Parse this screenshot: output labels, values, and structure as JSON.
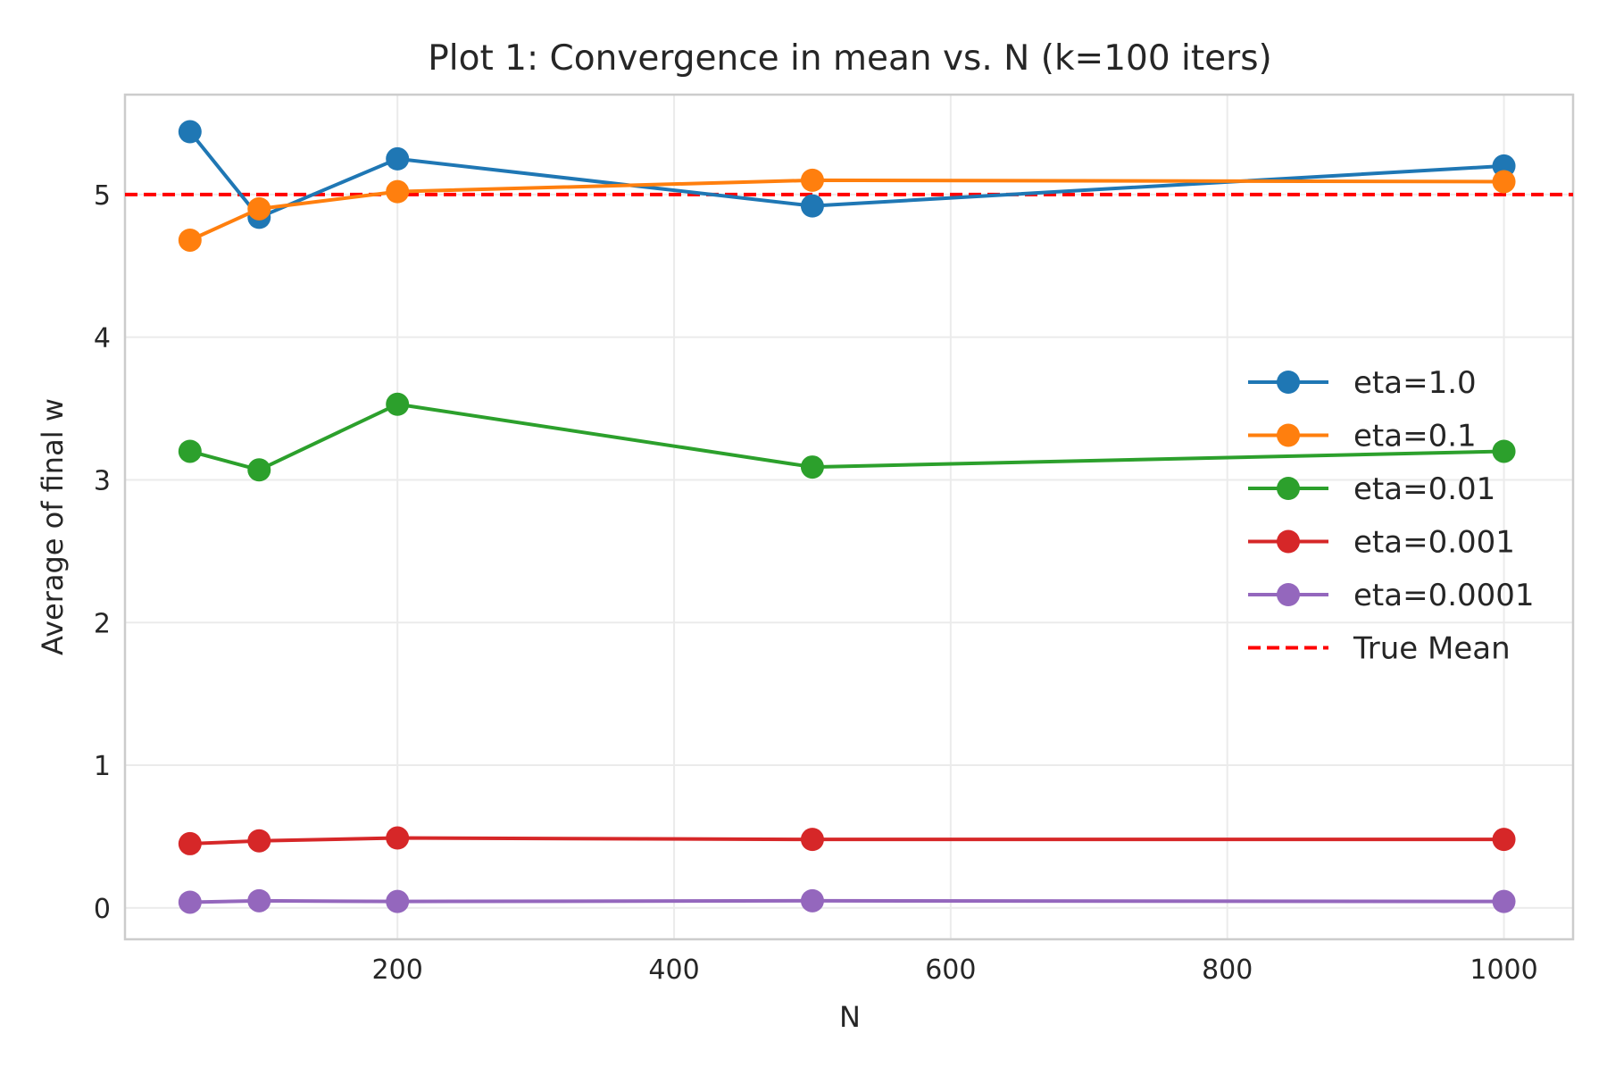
{
  "chart_data": {
    "type": "line",
    "title": "Plot 1: Convergence in mean vs. N (k=100 iters)",
    "xlabel": "N",
    "ylabel": "Average of final w",
    "x": [
      50,
      100,
      200,
      500,
      1000
    ],
    "xlim": [
      3,
      1050
    ],
    "ylim": [
      -0.22,
      5.7
    ],
    "xticks": [
      200,
      400,
      600,
      800,
      1000
    ],
    "yticks": [
      0,
      1,
      2,
      3,
      4,
      5
    ],
    "xtick_labels": [
      "200",
      "400",
      "600",
      "800",
      "1000"
    ],
    "ytick_labels": [
      "0",
      "1",
      "2",
      "3",
      "4",
      "5"
    ],
    "grid": true,
    "legend_position": "center-right",
    "series": [
      {
        "name": "eta=1.0",
        "color": "#1f77b4",
        "values": [
          5.44,
          4.84,
          5.25,
          4.92,
          5.2
        ]
      },
      {
        "name": "eta=0.1",
        "color": "#ff7f0e",
        "values": [
          4.68,
          4.9,
          5.02,
          5.1,
          5.09
        ]
      },
      {
        "name": "eta=0.01",
        "color": "#2ca02c",
        "values": [
          3.2,
          3.07,
          3.53,
          3.09,
          3.2
        ]
      },
      {
        "name": "eta=0.001",
        "color": "#d62728",
        "values": [
          0.45,
          0.47,
          0.49,
          0.48,
          0.48
        ]
      },
      {
        "name": "eta=0.0001",
        "color": "#9467bd",
        "values": [
          0.04,
          0.05,
          0.045,
          0.05,
          0.045
        ]
      }
    ],
    "reference_line": {
      "name": "True Mean",
      "y": 5.0,
      "color": "#ff0000",
      "style": "dashed"
    }
  }
}
